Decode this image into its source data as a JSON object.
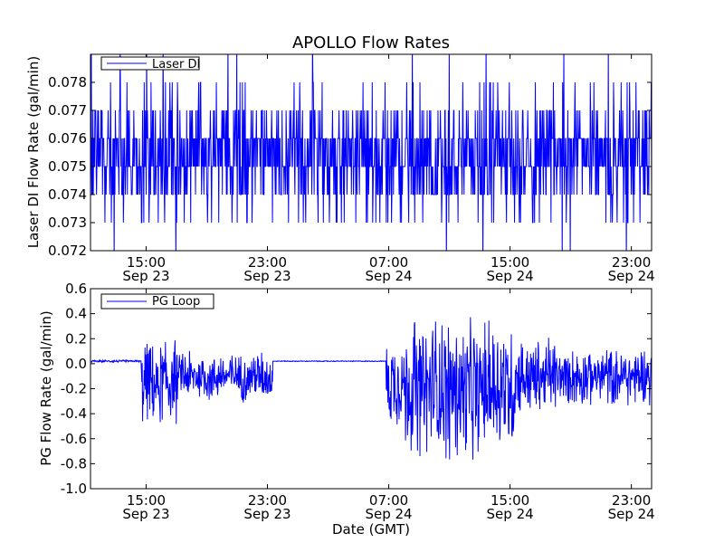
{
  "figure": {
    "title": "APOLLO Flow Rates"
  },
  "chart_data": [
    {
      "type": "line",
      "title": "APOLLO Flow Rates",
      "xlabel": "",
      "ylabel": "Laser DI Flow Rate (gal/min)",
      "x_range": [
        "Sep 23 11:20",
        "Sep 25 00:20"
      ],
      "ylim": [
        0.072,
        0.079
      ],
      "y_ticks": [
        "0.072",
        "0.073",
        "0.074",
        "0.075",
        "0.076",
        "0.077",
        "0.078"
      ],
      "x_ticks": [
        {
          "time": "15:00",
          "date": "Sep 23"
        },
        {
          "time": "23:00",
          "date": "Sep 23"
        },
        {
          "time": "07:00",
          "date": "Sep 24"
        },
        {
          "time": "15:00",
          "date": "Sep 24"
        },
        {
          "time": "23:00",
          "date": "Sep 24"
        }
      ],
      "legend_position": "top-left",
      "grid": false,
      "series": [
        {
          "name": "Laser DI",
          "color": "#0000ff",
          "summary": {
            "baseline_low": 0.075,
            "baseline_high": 0.076,
            "typical_min": 0.073,
            "typical_max": 0.078,
            "extreme_min": 0.072,
            "extreme_max": 0.079
          }
        }
      ]
    },
    {
      "type": "line",
      "title": "",
      "xlabel": "Date (GMT)",
      "ylabel": "PG Flow Rate (gal/min)",
      "x_range": [
        "Sep 23 11:20",
        "Sep 25 00:20"
      ],
      "ylim": [
        -1.0,
        0.6
      ],
      "y_ticks": [
        "-1.0",
        "-0.8",
        "-0.6",
        "-0.4",
        "-0.2",
        "0.0",
        "0.2",
        "0.4",
        "0.6"
      ],
      "x_ticks": [
        {
          "time": "15:00",
          "date": "Sep 23"
        },
        {
          "time": "23:00",
          "date": "Sep 23"
        },
        {
          "time": "07:00",
          "date": "Sep 24"
        },
        {
          "time": "15:00",
          "date": "Sep 24"
        },
        {
          "time": "23:00",
          "date": "Sep 24"
        }
      ],
      "legend_position": "top-left",
      "grid": false,
      "series": [
        {
          "name": "PG Loop",
          "color": "#0000ff",
          "segments": [
            {
              "start": "Sep 23 11:20",
              "end": "Sep 23 14:40",
              "center": 0.02,
              "amplitude": 0.01
            },
            {
              "start": "Sep 23 14:40",
              "end": "Sep 23 17:00",
              "center": -0.15,
              "amplitude": 0.38
            },
            {
              "start": "Sep 23 17:00",
              "end": "Sep 23 23:20",
              "center": -0.1,
              "amplitude": 0.22
            },
            {
              "start": "Sep 23 23:20",
              "end": "Sep 24 06:50",
              "center": 0.02,
              "amplitude": 0.004
            },
            {
              "start": "Sep 24 06:50",
              "end": "Sep 24 08:00",
              "center": -0.15,
              "amplitude": 0.42
            },
            {
              "start": "Sep 24 08:00",
              "end": "Sep 24 15:20",
              "center": -0.2,
              "amplitude": 0.62
            },
            {
              "start": "Sep 24 15:20",
              "end": "Sep 24 18:00",
              "center": -0.1,
              "amplitude": 0.35
            },
            {
              "start": "Sep 24 18:00",
              "end": "Sep 25 00:20",
              "center": -0.1,
              "amplitude": 0.25
            }
          ]
        }
      ]
    }
  ]
}
